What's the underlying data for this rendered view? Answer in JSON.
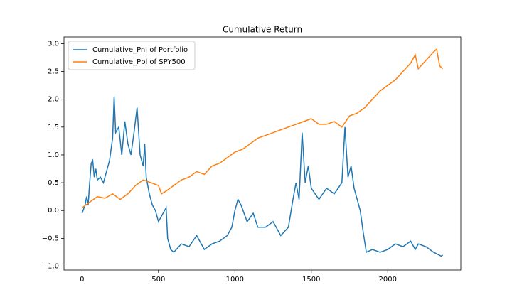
{
  "chart_data": {
    "type": "line",
    "title": "Cumulative Return",
    "xlim": [
      -118,
      2478
    ],
    "ylim": [
      -1.07,
      3.12
    ],
    "xticks": [
      0,
      500,
      1000,
      1500,
      2000
    ],
    "yticks": [
      {
        "value": -1.0,
        "label": "−1.0"
      },
      {
        "value": -0.5,
        "label": "−0.5"
      },
      {
        "value": 0.0,
        "label": "0.0"
      },
      0.5,
      {
        "value": 1.0,
        "label": "1.0"
      },
      1.5,
      {
        "value": 2.0,
        "label": "2.0"
      },
      2.5,
      {
        "value": 3.0,
        "label": "3.0"
      }
    ],
    "grid": false,
    "legend": "upper-left",
    "series": [
      {
        "name": "Cumulative_Pnl of Portfolio",
        "color": "#1f77b4",
        "x": [
          0,
          20,
          30,
          40,
          50,
          60,
          70,
          80,
          90,
          100,
          120,
          140,
          160,
          180,
          200,
          210,
          220,
          240,
          260,
          280,
          300,
          320,
          340,
          360,
          380,
          400,
          410,
          420,
          440,
          460,
          480,
          500,
          520,
          550,
          560,
          580,
          600,
          650,
          700,
          750,
          800,
          850,
          900,
          950,
          980,
          1000,
          1020,
          1040,
          1080,
          1120,
          1150,
          1200,
          1250,
          1300,
          1350,
          1380,
          1400,
          1420,
          1440,
          1460,
          1480,
          1500,
          1550,
          1600,
          1650,
          1700,
          1720,
          1740,
          1760,
          1780,
          1800,
          1820,
          1840,
          1860,
          1900,
          1950,
          2000,
          2050,
          2100,
          2150,
          2180,
          2200,
          2250,
          2300,
          2350,
          2360
        ],
        "values": [
          -0.05,
          0.1,
          0.25,
          0.1,
          0.5,
          0.85,
          0.9,
          0.6,
          0.75,
          0.55,
          0.6,
          0.5,
          0.7,
          0.9,
          1.3,
          2.05,
          1.4,
          1.5,
          1.0,
          1.6,
          1.2,
          1.0,
          1.4,
          1.85,
          1.0,
          0.8,
          1.2,
          0.6,
          0.3,
          0.1,
          0.0,
          -0.2,
          -0.1,
          0.05,
          -0.5,
          -0.7,
          -0.75,
          -0.6,
          -0.65,
          -0.45,
          -0.7,
          -0.6,
          -0.55,
          -0.45,
          -0.3,
          0.0,
          0.2,
          0.1,
          -0.2,
          -0.05,
          -0.3,
          -0.3,
          -0.2,
          -0.45,
          -0.3,
          0.2,
          0.5,
          0.2,
          1.4,
          0.5,
          0.8,
          0.4,
          0.2,
          0.4,
          0.3,
          0.5,
          1.5,
          0.6,
          0.8,
          0.4,
          0.2,
          0.0,
          -0.4,
          -0.75,
          -0.7,
          -0.75,
          -0.7,
          -0.6,
          -0.65,
          -0.55,
          -0.7,
          -0.6,
          -0.65,
          -0.75,
          -0.82,
          -0.8
        ]
      },
      {
        "name": "Cumulative_Pbl of SPY500",
        "color": "#ff7f0e",
        "x": [
          0,
          50,
          100,
          150,
          200,
          250,
          300,
          350,
          400,
          450,
          500,
          520,
          550,
          600,
          650,
          700,
          750,
          800,
          850,
          900,
          950,
          1000,
          1050,
          1100,
          1150,
          1200,
          1250,
          1300,
          1350,
          1400,
          1450,
          1500,
          1550,
          1600,
          1650,
          1700,
          1750,
          1800,
          1850,
          1900,
          1950,
          2000,
          2050,
          2100,
          2150,
          2180,
          2200,
          2250,
          2300,
          2320,
          2340,
          2360
        ],
        "values": [
          0.05,
          0.15,
          0.25,
          0.22,
          0.3,
          0.2,
          0.3,
          0.45,
          0.55,
          0.5,
          0.45,
          0.3,
          0.35,
          0.45,
          0.55,
          0.6,
          0.7,
          0.65,
          0.8,
          0.85,
          0.95,
          1.05,
          1.1,
          1.2,
          1.3,
          1.35,
          1.4,
          1.45,
          1.5,
          1.55,
          1.6,
          1.65,
          1.55,
          1.55,
          1.6,
          1.5,
          1.7,
          1.75,
          1.85,
          2.0,
          2.15,
          2.25,
          2.35,
          2.5,
          2.65,
          2.8,
          2.55,
          2.7,
          2.85,
          2.9,
          2.6,
          2.55
        ]
      }
    ]
  }
}
